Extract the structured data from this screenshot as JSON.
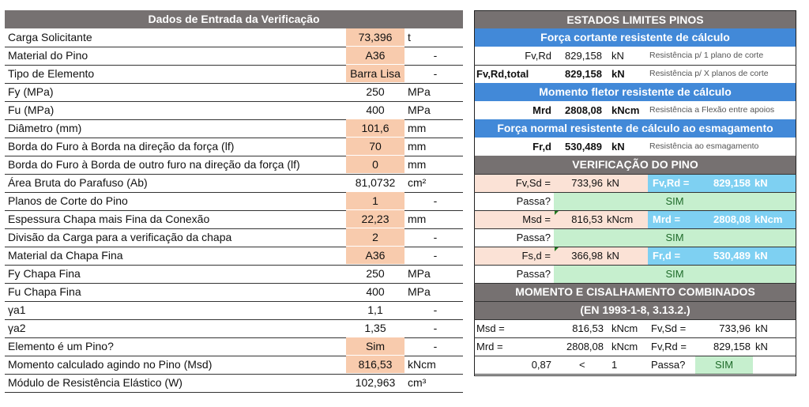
{
  "left": {
    "title": "Dados de Entrada da Verificação",
    "rows": [
      {
        "label": "Carga Solicitante",
        "value": "73,396",
        "unit": "t",
        "input": true
      },
      {
        "label": "Material do Pino",
        "value": "A36",
        "unit": "-",
        "input": true
      },
      {
        "label": "Tipo de Elemento",
        "value": "Barra Lisa",
        "unit": "-",
        "input": true
      },
      {
        "label": "Fy (MPa)",
        "value": "250",
        "unit": "MPa",
        "input": false
      },
      {
        "label": "Fu (MPa)",
        "value": "400",
        "unit": "MPa",
        "input": false
      },
      {
        "label": "Diâmetro (mm)",
        "value": "101,6",
        "unit": "mm",
        "input": true
      },
      {
        "label": "Borda do Furo à Borda na direção da força (lf)",
        "value": "70",
        "unit": "mm",
        "input": true
      },
      {
        "label": "Borda do Furo à Borda de outro furo na direção da força (lf)",
        "value": "0",
        "unit": "mm",
        "input": true
      },
      {
        "label": "Área Bruta do Parafuso (Ab)",
        "value": "81,0732",
        "unit": "cm²",
        "input": false
      },
      {
        "label": "Planos de Corte do Pino",
        "value": "1",
        "unit": "-",
        "input": true
      },
      {
        "label": "Espessura Chapa mais Fina da Conexão",
        "value": "22,23",
        "unit": "mm",
        "input": true
      },
      {
        "label": "Divisão da Carga para a verificação da chapa",
        "value": "2",
        "unit": "-",
        "input": true
      },
      {
        "label": "Material da Chapa Fina",
        "value": "A36",
        "unit": "-",
        "input": true
      },
      {
        "label": "Fy Chapa Fina",
        "value": "250",
        "unit": "MPa",
        "input": false
      },
      {
        "label": "Fu Chapa Fina",
        "value": "400",
        "unit": "MPa",
        "input": false
      },
      {
        "label": "γa1",
        "value": "1,1",
        "unit": "-",
        "input": false
      },
      {
        "label": "γa2",
        "value": "1,35",
        "unit": "-",
        "input": false
      },
      {
        "label": "Elemento é um Pino?",
        "value": "Sim",
        "unit": "-",
        "input": true
      },
      {
        "label": "Momento calculado agindo no Pino (Msd)",
        "value": "816,53",
        "unit": "kNcm",
        "input": true
      },
      {
        "label": "Módulo de Resistência Elástico (W)",
        "value": "102,963",
        "unit": "cm³",
        "input": false
      }
    ]
  },
  "right": {
    "title": "ESTADOS LIMITES PINOS",
    "shear_title": "Força cortante resistente de cálculo",
    "fvrd": {
      "label": "Fv,Rd",
      "value": "829,158",
      "unit": "kN",
      "note": "Resistência p/ 1 plano de corte"
    },
    "fvrdt": {
      "label": "Fv,Rd,total",
      "value": "829,158",
      "unit": "kN",
      "note": "Resistência p/ X planos de corte"
    },
    "moment_title": "Momento fletor resistente de cálculo",
    "mrd": {
      "label": "Mrd",
      "value": "2808,08",
      "unit": "kNcm",
      "note": "Resistência a Flexão entre apoios"
    },
    "bearing_title": "Força normal resistente de cálculo ao esmagamento",
    "frd": {
      "label": "Fr,d",
      "value": "530,489",
      "unit": "kN",
      "note": "Resistência ao esmagamento"
    },
    "verif_title": "VERIFICAÇÃO DO PINO",
    "checks": [
      {
        "sd_label": "Fv,Sd =",
        "sd_value": "733,96",
        "sd_unit": "kN",
        "rd_label": "Fv,Rd =",
        "rd_value": "829,158",
        "rd_unit": "kN",
        "pass_label": "Passa?",
        "pass": "SIM"
      },
      {
        "sd_label": "Msd =",
        "sd_value": "816,53",
        "sd_unit": "kNcm",
        "rd_label": "Mrd =",
        "rd_value": "2808,08",
        "rd_unit": "kNcm",
        "pass_label": "Passa?",
        "pass": "SIM"
      },
      {
        "sd_label": "Fs,d =",
        "sd_value": "366,98",
        "sd_unit": "kN",
        "rd_label": "Fr,d =",
        "rd_value": "530,489",
        "rd_unit": "kN",
        "pass_label": "Passa?",
        "pass": "SIM"
      }
    ],
    "combined_title": "MOMENTO E CISALHAMENTO COMBINADOS",
    "combined_sub": "(EN 1993-1-8, 3.13.2.)",
    "comb": [
      {
        "l1": "Msd =",
        "v1": "816,53",
        "u1": "kNcm",
        "l2": "Fv,Sd =",
        "v2": "733,96",
        "u2": "kN"
      },
      {
        "l1": "Mrd =",
        "v1": "2808,08",
        "u1": "kNcm",
        "l2": "Fv,Rd =",
        "v2": "829,158",
        "u2": "kN"
      }
    ],
    "ratio": {
      "value": "0,87",
      "op": "<",
      "limit": "1",
      "pass_label": "Passa?",
      "pass": "SIM"
    }
  }
}
